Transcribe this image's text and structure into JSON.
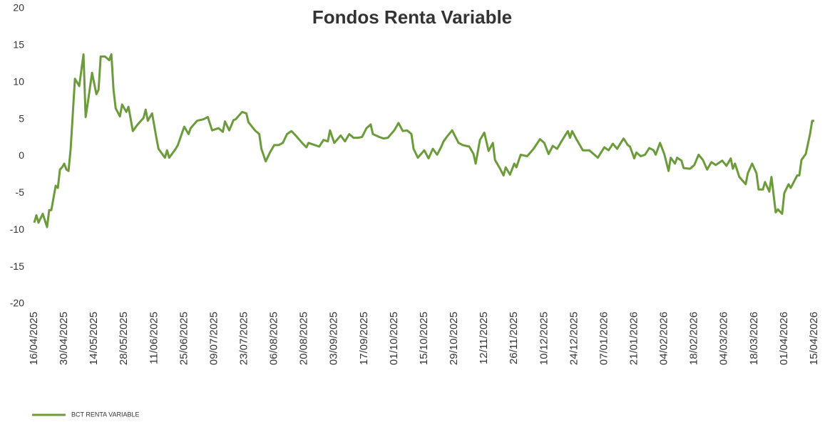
{
  "chart_data": {
    "type": "line",
    "title": "Fondos Renta Variable",
    "x": [
      "16/04/2025",
      "17/04/2025",
      "18/04/2025",
      "20/04/2025",
      "22/04/2025",
      "23/04/2025",
      "24/04/2025",
      "26/04/2025",
      "27/04/2025",
      "28/04/2025",
      "29/04/2025",
      "30/04/2025",
      "01/05/2025",
      "02/05/2025",
      "03/05/2025",
      "05/05/2025",
      "07/05/2025",
      "09/05/2025",
      "10/05/2025",
      "11/05/2025",
      "13/05/2025",
      "15/05/2025",
      "16/05/2025",
      "17/05/2025",
      "19/05/2025",
      "21/05/2025",
      "22/05/2025",
      "23/05/2025",
      "24/05/2025",
      "26/05/2025",
      "27/05/2025",
      "29/05/2025",
      "30/05/2025",
      "01/06/2025",
      "03/06/2025",
      "06/06/2025",
      "07/06/2025",
      "08/06/2025",
      "10/06/2025",
      "12/06/2025",
      "13/06/2025",
      "16/06/2025",
      "17/06/2025",
      "18/06/2025",
      "21/06/2025",
      "22/06/2025",
      "25/06/2025",
      "27/06/2025",
      "28/06/2025",
      "01/07/2025",
      "04/07/2025",
      "06/07/2025",
      "08/07/2025",
      "11/07/2025",
      "13/07/2025",
      "14/07/2025",
      "16/07/2025",
      "18/07/2025",
      "19/07/2025",
      "22/07/2025",
      "24/07/2025",
      "25/07/2025",
      "28/07/2025",
      "30/07/2025",
      "31/07/2025",
      "02/08/2025",
      "04/08/2025",
      "06/08/2025",
      "08/08/2025",
      "10/08/2025",
      "12/08/2025",
      "14/08/2025",
      "16/08/2025",
      "19/08/2025",
      "21/08/2025",
      "22/08/2025",
      "25/08/2025",
      "27/08/2025",
      "29/08/2025",
      "31/08/2025",
      "01/09/2025",
      "03/09/2025",
      "06/09/2025",
      "08/09/2025",
      "10/09/2025",
      "12/09/2025",
      "14/09/2025",
      "16/09/2025",
      "18/09/2025",
      "20/09/2025",
      "21/09/2025",
      "24/09/2025",
      "26/09/2025",
      "28/09/2025",
      "01/10/2025",
      "03/10/2025",
      "05/10/2025",
      "07/10/2025",
      "09/10/2025",
      "10/10/2025",
      "12/10/2025",
      "15/10/2025",
      "17/10/2025",
      "19/10/2025",
      "21/10/2025",
      "23/10/2025",
      "24/10/2025",
      "26/10/2025",
      "28/10/2025",
      "31/10/2025",
      "02/11/2025",
      "05/11/2025",
      "07/11/2025",
      "08/11/2025",
      "10/11/2025",
      "12/11/2025",
      "14/11/2025",
      "16/11/2025",
      "17/11/2025",
      "19/11/2025",
      "21/11/2025",
      "22/11/2025",
      "24/11/2025",
      "26/11/2025",
      "27/11/2025",
      "29/11/2025",
      "02/12/2025",
      "05/12/2025",
      "08/12/2025",
      "10/12/2025",
      "12/12/2025",
      "14/12/2025",
      "16/12/2025",
      "18/12/2025",
      "21/12/2025",
      "22/12/2025",
      "23/12/2025",
      "25/12/2025",
      "27/12/2025",
      "28/12/2025",
      "31/12/2025",
      "02/01/2026",
      "04/01/2026",
      "07/01/2026",
      "09/01/2026",
      "11/01/2026",
      "13/01/2026",
      "16/01/2026",
      "18/01/2026",
      "19/01/2026",
      "21/01/2026",
      "22/01/2026",
      "24/01/2026",
      "26/01/2026",
      "28/01/2026",
      "30/01/2026",
      "31/01/2026",
      "02/02/2026",
      "04/02/2026",
      "06/02/2026",
      "07/02/2026",
      "09/02/2026",
      "10/02/2026",
      "12/02/2026",
      "13/02/2026",
      "16/02/2026",
      "18/02/2026",
      "20/02/2026",
      "22/02/2026",
      "24/02/2026",
      "26/02/2026",
      "28/02/2026",
      "03/03/2026",
      "05/03/2026",
      "07/03/2026",
      "08/03/2026",
      "09/03/2026",
      "11/03/2026",
      "14/03/2026",
      "15/03/2026",
      "17/03/2026",
      "19/03/2026",
      "20/03/2026",
      "22/03/2026",
      "23/03/2026",
      "25/03/2026",
      "26/03/2026",
      "28/03/2026",
      "29/03/2026",
      "31/03/2026",
      "01/04/2026",
      "03/04/2026",
      "04/04/2026",
      "07/04/2026",
      "08/04/2026",
      "09/04/2026",
      "11/04/2026",
      "13/04/2026",
      "14/04/2026",
      "15/04/2026"
    ],
    "series": [
      {
        "name": "BCT RENTA VARIABLE",
        "color": "#6b9b3a",
        "values": [
          -9,
          -8,
          -9,
          -7.8,
          -9.6,
          -7.3,
          -7.3,
          -4,
          -4.3,
          -1.8,
          -1.5,
          -1,
          -1.8,
          -2,
          1,
          10.5,
          9.5,
          13.8,
          5.3,
          7.2,
          11.3,
          8.4,
          9,
          13.5,
          13.5,
          13,
          13.8,
          9,
          6.5,
          5.4,
          7,
          6,
          6.7,
          3.4,
          4.2,
          5.2,
          6.3,
          4.8,
          5.8,
          2.5,
          1,
          -0.2,
          0.8,
          -0.2,
          1,
          1.5,
          4,
          3,
          3.8,
          4.8,
          5,
          5.3,
          3.5,
          3.8,
          3.3,
          4.7,
          3.5,
          4.9,
          5,
          6,
          5.8,
          4.6,
          3.5,
          3,
          1,
          -0.7,
          0.5,
          1.5,
          1.5,
          1.8,
          3,
          3.4,
          2.8,
          1.8,
          1.2,
          1.8,
          1.5,
          1.3,
          2.2,
          2,
          3.5,
          1.8,
          2.8,
          2,
          3,
          2.5,
          2.5,
          2.6,
          3.8,
          4.3,
          3,
          2.6,
          2.4,
          2.5,
          3.5,
          4.5,
          3.4,
          3.5,
          3,
          1,
          -0.2,
          0.8,
          -0.3,
          1,
          0.2,
          1.3,
          2,
          2.8,
          3.5,
          1.8,
          1.5,
          1.3,
          0.3,
          -1,
          2.2,
          3.2,
          0.7,
          1.8,
          -0.5,
          -1.5,
          -2.6,
          -1.5,
          -2.5,
          -1,
          -1.5,
          0.2,
          0,
          1,
          2.3,
          1.8,
          0.3,
          1.4,
          1,
          2,
          3.4,
          2.5,
          3.4,
          2.3,
          1.3,
          0.8,
          0.8,
          0.3,
          -0.2,
          1.2,
          0.8,
          1.7,
          1,
          2.4,
          1.5,
          1.3,
          -0.3,
          0.5,
          0,
          0.2,
          1.1,
          0.8,
          0.2,
          1.8,
          0.3,
          -2,
          -0.2,
          -1,
          -0.2,
          -0.6,
          -1.6,
          -1.7,
          -1.2,
          0.2,
          -0.5,
          -1.8,
          -0.8,
          -1.2,
          -0.6,
          -1.3,
          -0.3,
          -1.7,
          -1,
          -2.8,
          -3.8,
          -2.3,
          -1,
          -2.3,
          -4.5,
          -4.5,
          -3.5,
          -4.8,
          -2.8,
          -7.6,
          -7.2,
          -7.8,
          -5,
          -3.8,
          -4.3,
          -2.6,
          -2.6,
          -0.5,
          0.3,
          3,
          4.8,
          4.8
        ]
      }
    ],
    "xlim": [
      "16/04/2025",
      "15/04/2026"
    ],
    "xticks": [
      "16/04/2025",
      "30/04/2025",
      "14/05/2025",
      "28/05/2025",
      "11/06/2025",
      "25/06/2025",
      "09/07/2025",
      "23/07/2025",
      "06/08/2025",
      "20/08/2025",
      "03/09/2025",
      "17/09/2025",
      "01/10/2025",
      "15/10/2025",
      "29/10/2025",
      "12/11/2025",
      "26/11/2025",
      "10/12/2025",
      "24/12/2025",
      "07/01/2026",
      "21/01/2026",
      "04/02/2026",
      "18/02/2026",
      "04/03/2026",
      "18/03/2026",
      "01/04/2026",
      "15/04/2026"
    ],
    "ylim": [
      -20,
      20
    ],
    "yticks": [
      -20,
      -15,
      -10,
      -5,
      0,
      5,
      10,
      15,
      20
    ],
    "grid": false,
    "legend": "bottom-left"
  }
}
